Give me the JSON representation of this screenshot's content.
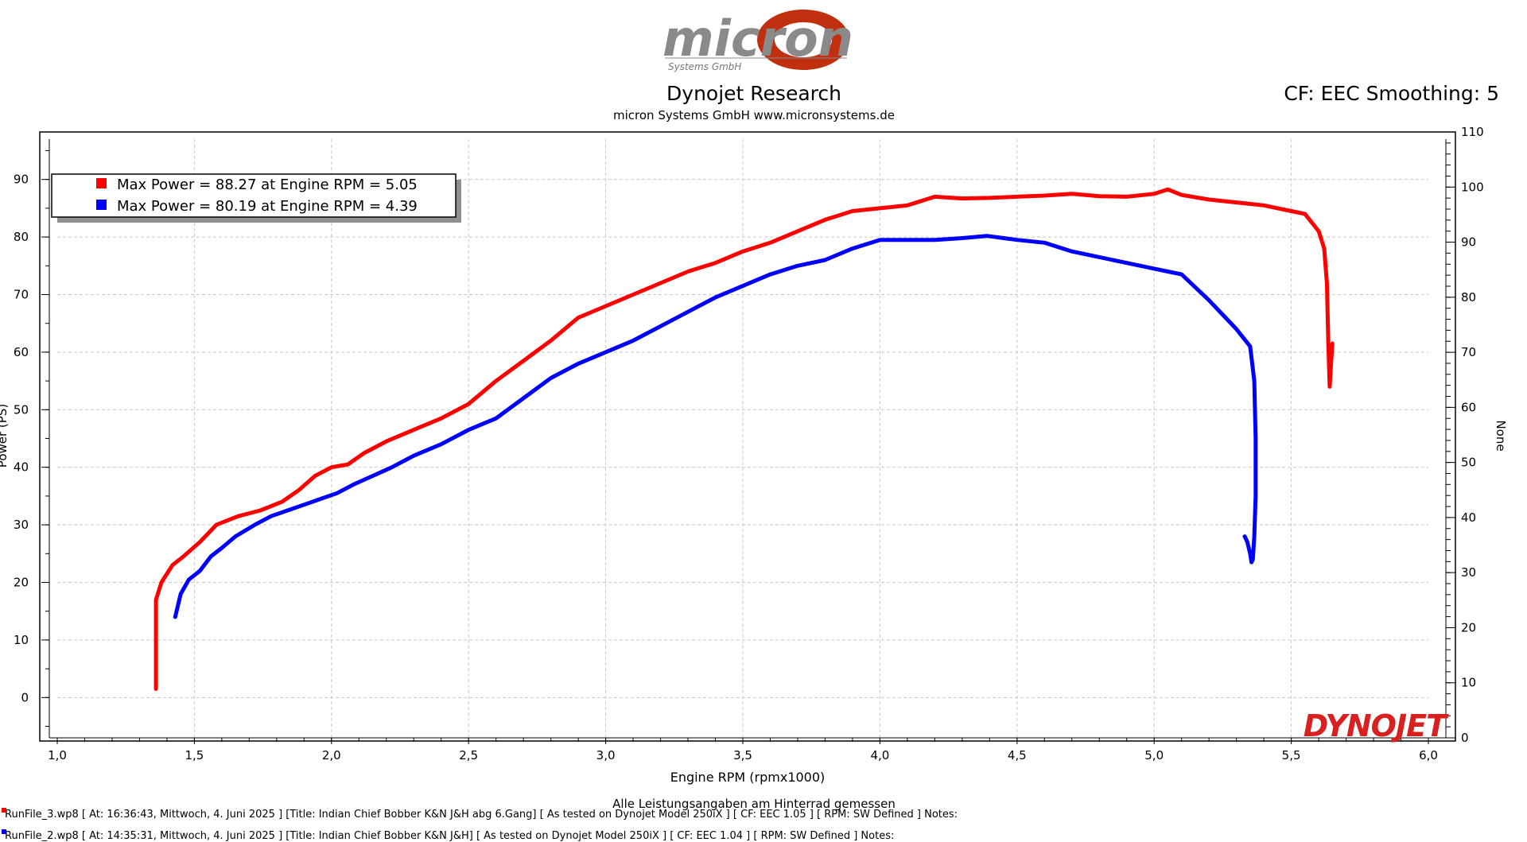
{
  "header": {
    "logo_text": "micron",
    "logo_subtext": "Systems GmbH",
    "title": "Dynojet Research",
    "subtitle": "micron Systems GmbH  www.micronsystems.de",
    "cf_label": "CF: EEC Smoothing: 5",
    "watermark": "DYNOJET"
  },
  "legend": [
    {
      "label": "Max Power = 88.27 at Engine RPM = 5.05",
      "color": "#ff0000"
    },
    {
      "label": "Max Power = 80.19 at Engine RPM = 4.39",
      "color": "#0000ff"
    }
  ],
  "chart_data": {
    "type": "line",
    "xlabel": "Engine RPM (rpmx1000)",
    "ylabel": "Power (PS)",
    "y2label": "None",
    "xlim": [
      1.0,
      6.0
    ],
    "ylim": [
      -7,
      97
    ],
    "y2lim": [
      0,
      110
    ],
    "x_ticks": [
      "1,0",
      "1,5",
      "2,0",
      "2,5",
      "3,0",
      "3,5",
      "4,0",
      "4,5",
      "5,0",
      "5,5",
      "6,0"
    ],
    "y_ticks": [
      0,
      10,
      20,
      30,
      40,
      50,
      60,
      70,
      80,
      90
    ],
    "y2_ticks": [
      0,
      10,
      20,
      30,
      40,
      50,
      60,
      70,
      80,
      90,
      100,
      110
    ],
    "grid": true,
    "series": [
      {
        "name": "RunFile_3.wp8",
        "color": "#ff0000",
        "x": [
          1.36,
          1.36,
          1.36,
          1.38,
          1.42,
          1.46,
          1.52,
          1.58,
          1.66,
          1.74,
          1.82,
          1.88,
          1.94,
          2.0,
          2.06,
          2.12,
          2.2,
          2.3,
          2.4,
          2.5,
          2.6,
          2.7,
          2.8,
          2.9,
          3.0,
          3.1,
          3.2,
          3.3,
          3.4,
          3.5,
          3.6,
          3.7,
          3.8,
          3.9,
          4.0,
          4.1,
          4.2,
          4.3,
          4.4,
          4.5,
          4.6,
          4.7,
          4.8,
          4.9,
          5.0,
          5.05,
          5.1,
          5.2,
          5.3,
          5.4,
          5.5,
          5.55,
          5.6,
          5.62,
          5.63,
          5.635,
          5.64,
          5.645,
          5.65
        ],
        "y": [
          1.5,
          13,
          17,
          20,
          23,
          24.5,
          27,
          30,
          31.5,
          32.5,
          34,
          36,
          38.5,
          40,
          40.5,
          42.5,
          44.5,
          46.5,
          48.5,
          51,
          55,
          58.5,
          62,
          66,
          68,
          70,
          72,
          74,
          75.5,
          77.5,
          79,
          81,
          83,
          84.5,
          85,
          85.5,
          87,
          86.7,
          86.8,
          87,
          87.2,
          87.5,
          87.1,
          87,
          87.5,
          88.27,
          87.3,
          86.5,
          86,
          85.5,
          84.5,
          84,
          81,
          78,
          72,
          62,
          54,
          58,
          61.5
        ]
      },
      {
        "name": "RunFile_2.wp8",
        "color": "#0000ff",
        "x": [
          1.43,
          1.45,
          1.48,
          1.52,
          1.56,
          1.6,
          1.65,
          1.72,
          1.78,
          1.84,
          1.9,
          1.96,
          2.02,
          2.08,
          2.15,
          2.22,
          2.3,
          2.4,
          2.5,
          2.6,
          2.7,
          2.8,
          2.9,
          3.0,
          3.1,
          3.2,
          3.3,
          3.4,
          3.5,
          3.6,
          3.7,
          3.8,
          3.9,
          4.0,
          4.1,
          4.2,
          4.3,
          4.39,
          4.5,
          4.6,
          4.7,
          4.8,
          4.9,
          5.0,
          5.05,
          5.1,
          5.2,
          5.3,
          5.35,
          5.365,
          5.37,
          5.37,
          5.365,
          5.36,
          5.355,
          5.35,
          5.34,
          5.33
        ],
        "y": [
          14,
          18,
          20.5,
          22,
          24.5,
          26,
          28,
          30,
          31.5,
          32.5,
          33.5,
          34.5,
          35.5,
          37,
          38.5,
          40,
          42,
          44,
          46.5,
          48.5,
          52,
          55.5,
          58,
          60,
          62,
          64.5,
          67,
          69.5,
          71.5,
          73.5,
          75,
          76,
          78,
          79.5,
          79.5,
          79.5,
          79.8,
          80.19,
          79.5,
          79,
          77.5,
          76.5,
          75.5,
          74.5,
          74,
          73.5,
          69,
          64,
          61,
          55,
          45,
          35,
          28,
          24,
          23.5,
          25,
          27,
          28
        ]
      }
    ]
  },
  "footer": {
    "note": "Alle Leistungsangaben am Hinterrad gemessen",
    "run1": "RunFile_3.wp8  [  At:  16:36:43,  Mittwoch,  4.  Juni  2025  ]  [Title:  Indian  Chief  Bobber  K&N  J&H  abg  6.Gang]    [  As  tested  on  Dynojet  Model  250iX  ]  [  CF:  EEC  1.05  ]  [  RPM:  SW  Defined  ]  Notes:",
    "run2": "RunFile_2.wp8  [  At:  14:35:31,  Mittwoch,  4.  Juni  2025  ]  [Title:  Indian  Chief  Bobber  K&N  J&H]    [  As  tested  on  Dynojet  Model  250iX  ]  [  CF:  EEC  1.04  ]  [  RPM:  SW  Defined  ]  Notes:"
  }
}
